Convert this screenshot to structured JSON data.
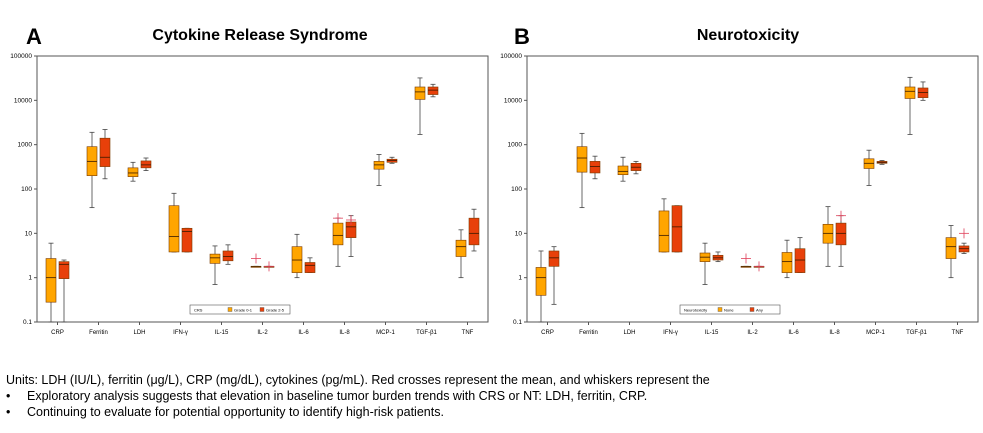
{
  "chart_data": [
    {
      "type": "box",
      "panel_label": "A",
      "title": "Cytokine Release Syndrome",
      "yscale": "log",
      "ylim": [
        0.1,
        100000
      ],
      "yticks": [
        "0.1",
        "1",
        "10",
        "100",
        "1000",
        "10000",
        "100000"
      ],
      "categories": [
        "CRP",
        "Ferritin",
        "LDH",
        "IFN-γ",
        "IL-15",
        "IL-2",
        "IL-6",
        "IL-8",
        "MCP-1",
        "TGF-β1",
        "TNF"
      ],
      "legend": {
        "title": "CRS",
        "position": "bottom-center",
        "entries": [
          "Grade 0-1",
          "Grade 2-5"
        ]
      },
      "series": [
        {
          "name": "Grade 0-1",
          "color": "#FFA500",
          "boxes": [
            {
              "min": 0.1,
              "q1": 0.28,
              "median": 1.0,
              "q3": 2.7,
              "max": 6.0,
              "mean": null
            },
            {
              "min": 38,
              "q1": 200,
              "median": 420,
              "q3": 900,
              "max": 1900,
              "mean": null
            },
            {
              "min": 150,
              "q1": 190,
              "median": 230,
              "q3": 300,
              "max": 400,
              "mean": null
            },
            {
              "min": 3.8,
              "q1": 3.8,
              "median": 8.5,
              "q3": 42,
              "max": 80,
              "mean": null
            },
            {
              "min": 0.7,
              "q1": 2.1,
              "median": 2.8,
              "q3": 3.4,
              "max": 5.2,
              "mean": null
            },
            {
              "min": 1.8,
              "q1": 1.8,
              "median": 1.8,
              "q3": 1.8,
              "max": 1.8,
              "mean": 2.7
            },
            {
              "min": 1.0,
              "q1": 1.3,
              "median": 2.5,
              "q3": 5.0,
              "max": 9.5,
              "mean": null
            },
            {
              "min": 1.8,
              "q1": 5.5,
              "median": 9.0,
              "q3": 17,
              "max": 22,
              "mean": 22
            },
            {
              "min": 120,
              "q1": 280,
              "median": 350,
              "q3": 420,
              "max": 600,
              "mean": null
            },
            {
              "min": 1700,
              "q1": 10500,
              "median": 15500,
              "q3": 20000,
              "max": 32000,
              "mean": null
            },
            {
              "min": 1.0,
              "q1": 3.0,
              "median": 5.0,
              "q3": 7.0,
              "max": 12,
              "mean": null
            }
          ]
        },
        {
          "name": "Grade 2-5",
          "color": "#E8400A",
          "boxes": [
            {
              "min": 0.1,
              "q1": 0.95,
              "median": 2.0,
              "q3": 2.3,
              "max": 2.5,
              "mean": null
            },
            {
              "min": 170,
              "q1": 320,
              "median": 520,
              "q3": 1400,
              "max": 2200,
              "mean": null
            },
            {
              "min": 260,
              "q1": 300,
              "median": 350,
              "q3": 430,
              "max": 500,
              "mean": null
            },
            {
              "min": 3.8,
              "q1": 3.8,
              "median": 11,
              "q3": 13,
              "max": 13,
              "mean": null
            },
            {
              "min": 2.0,
              "q1": 2.4,
              "median": 3.0,
              "q3": 4.0,
              "max": 5.5,
              "mean": null
            },
            {
              "min": 1.8,
              "q1": 1.8,
              "median": 1.8,
              "q3": 1.8,
              "max": 1.8,
              "mean": 1.8
            },
            {
              "min": 1.3,
              "q1": 1.3,
              "median": 1.9,
              "q3": 2.2,
              "max": 2.8,
              "mean": null
            },
            {
              "min": 3.0,
              "q1": 8.0,
              "median": 14,
              "q3": 18,
              "max": 25,
              "mean": 20
            },
            {
              "min": 380,
              "q1": 400,
              "median": 440,
              "q3": 470,
              "max": 520,
              "mean": null
            },
            {
              "min": 12000,
              "q1": 13500,
              "median": 17000,
              "q3": 20000,
              "max": 23000,
              "mean": null
            },
            {
              "min": 4.0,
              "q1": 5.5,
              "median": 10,
              "q3": 22,
              "max": 35,
              "mean": null
            }
          ]
        }
      ]
    },
    {
      "type": "box",
      "panel_label": "B",
      "title": "Neurotoxicity",
      "yscale": "log",
      "ylim": [
        0.1,
        100000
      ],
      "yticks": [
        "0.1",
        "1",
        "10",
        "100",
        "1000",
        "10000",
        "100000"
      ],
      "categories": [
        "CRP",
        "Ferritin",
        "LDH",
        "IFN-γ",
        "IL-15",
        "IL-2",
        "IL-6",
        "IL-8",
        "MCP-1",
        "TGF-β1",
        "TNF"
      ],
      "legend": {
        "title": "Neurotoxicity",
        "position": "bottom-center",
        "entries": [
          "None",
          "Any"
        ]
      },
      "series": [
        {
          "name": "None",
          "color": "#FFA500",
          "boxes": [
            {
              "min": 0.1,
              "q1": 0.4,
              "median": 1.0,
              "q3": 1.7,
              "max": 4.0,
              "mean": null
            },
            {
              "min": 38,
              "q1": 240,
              "median": 500,
              "q3": 900,
              "max": 1800,
              "mean": null
            },
            {
              "min": 150,
              "q1": 210,
              "median": 250,
              "q3": 330,
              "max": 520,
              "mean": null
            },
            {
              "min": 3.8,
              "q1": 3.8,
              "median": 9.0,
              "q3": 32,
              "max": 60,
              "mean": null
            },
            {
              "min": 0.7,
              "q1": 2.3,
              "median": 2.9,
              "q3": 3.6,
              "max": 6.0,
              "mean": null
            },
            {
              "min": 1.8,
              "q1": 1.8,
              "median": 1.8,
              "q3": 1.8,
              "max": 1.8,
              "mean": 2.7
            },
            {
              "min": 1.0,
              "q1": 1.3,
              "median": 2.3,
              "q3": 3.7,
              "max": 7.0,
              "mean": null
            },
            {
              "min": 1.8,
              "q1": 6.0,
              "median": 10,
              "q3": 16,
              "max": 40,
              "mean": null
            },
            {
              "min": 120,
              "q1": 290,
              "median": 380,
              "q3": 480,
              "max": 750,
              "mean": null
            },
            {
              "min": 1700,
              "q1": 11000,
              "median": 16000,
              "q3": 20000,
              "max": 33000,
              "mean": null
            },
            {
              "min": 1.0,
              "q1": 2.7,
              "median": 5.0,
              "q3": 8.0,
              "max": 15,
              "mean": null
            }
          ]
        },
        {
          "name": "Any",
          "color": "#E8400A",
          "boxes": [
            {
              "min": 0.25,
              "q1": 1.8,
              "median": 2.8,
              "q3": 4.0,
              "max": 5.0,
              "mean": null
            },
            {
              "min": 170,
              "q1": 230,
              "median": 320,
              "q3": 420,
              "max": 550,
              "mean": null
            },
            {
              "min": 220,
              "q1": 260,
              "median": 310,
              "q3": 380,
              "max": 420,
              "mean": null
            },
            {
              "min": 3.8,
              "q1": 3.8,
              "median": 14,
              "q3": 42,
              "max": 42,
              "mean": null
            },
            {
              "min": 2.3,
              "q1": 2.5,
              "median": 2.8,
              "q3": 3.2,
              "max": 3.8,
              "mean": null
            },
            {
              "min": 1.8,
              "q1": 1.8,
              "median": 1.8,
              "q3": 1.8,
              "max": 1.8,
              "mean": 1.8
            },
            {
              "min": 1.3,
              "q1": 1.3,
              "median": 2.5,
              "q3": 4.5,
              "max": 8.0,
              "mean": null
            },
            {
              "min": 1.8,
              "q1": 5.5,
              "median": 10,
              "q3": 17,
              "max": 25,
              "mean": 25
            },
            {
              "min": 360,
              "q1": 380,
              "median": 400,
              "q3": 420,
              "max": 440,
              "mean": null
            },
            {
              "min": 10000,
              "q1": 11500,
              "median": 15000,
              "q3": 19000,
              "max": 26000,
              "mean": null
            },
            {
              "min": 3.5,
              "q1": 3.8,
              "median": 4.5,
              "q3": 5.2,
              "max": 6.0,
              "mean": 10
            }
          ]
        }
      ]
    }
  ],
  "notes": {
    "units_line": "Units: LDH (IU/L), ferritin (μg/L), CRP (mg/dL), cytokines (pg/mL). Red crosses represent the mean, and whiskers represent the",
    "bullet_char": "•",
    "bullets": [
      "Exploratory analysis suggests that elevation in baseline tumor burden trends with CRS or NT: LDH, ferritin, CRP.",
      "Continuing to evaluate for potential opportunity to identify high-risk patients."
    ]
  }
}
